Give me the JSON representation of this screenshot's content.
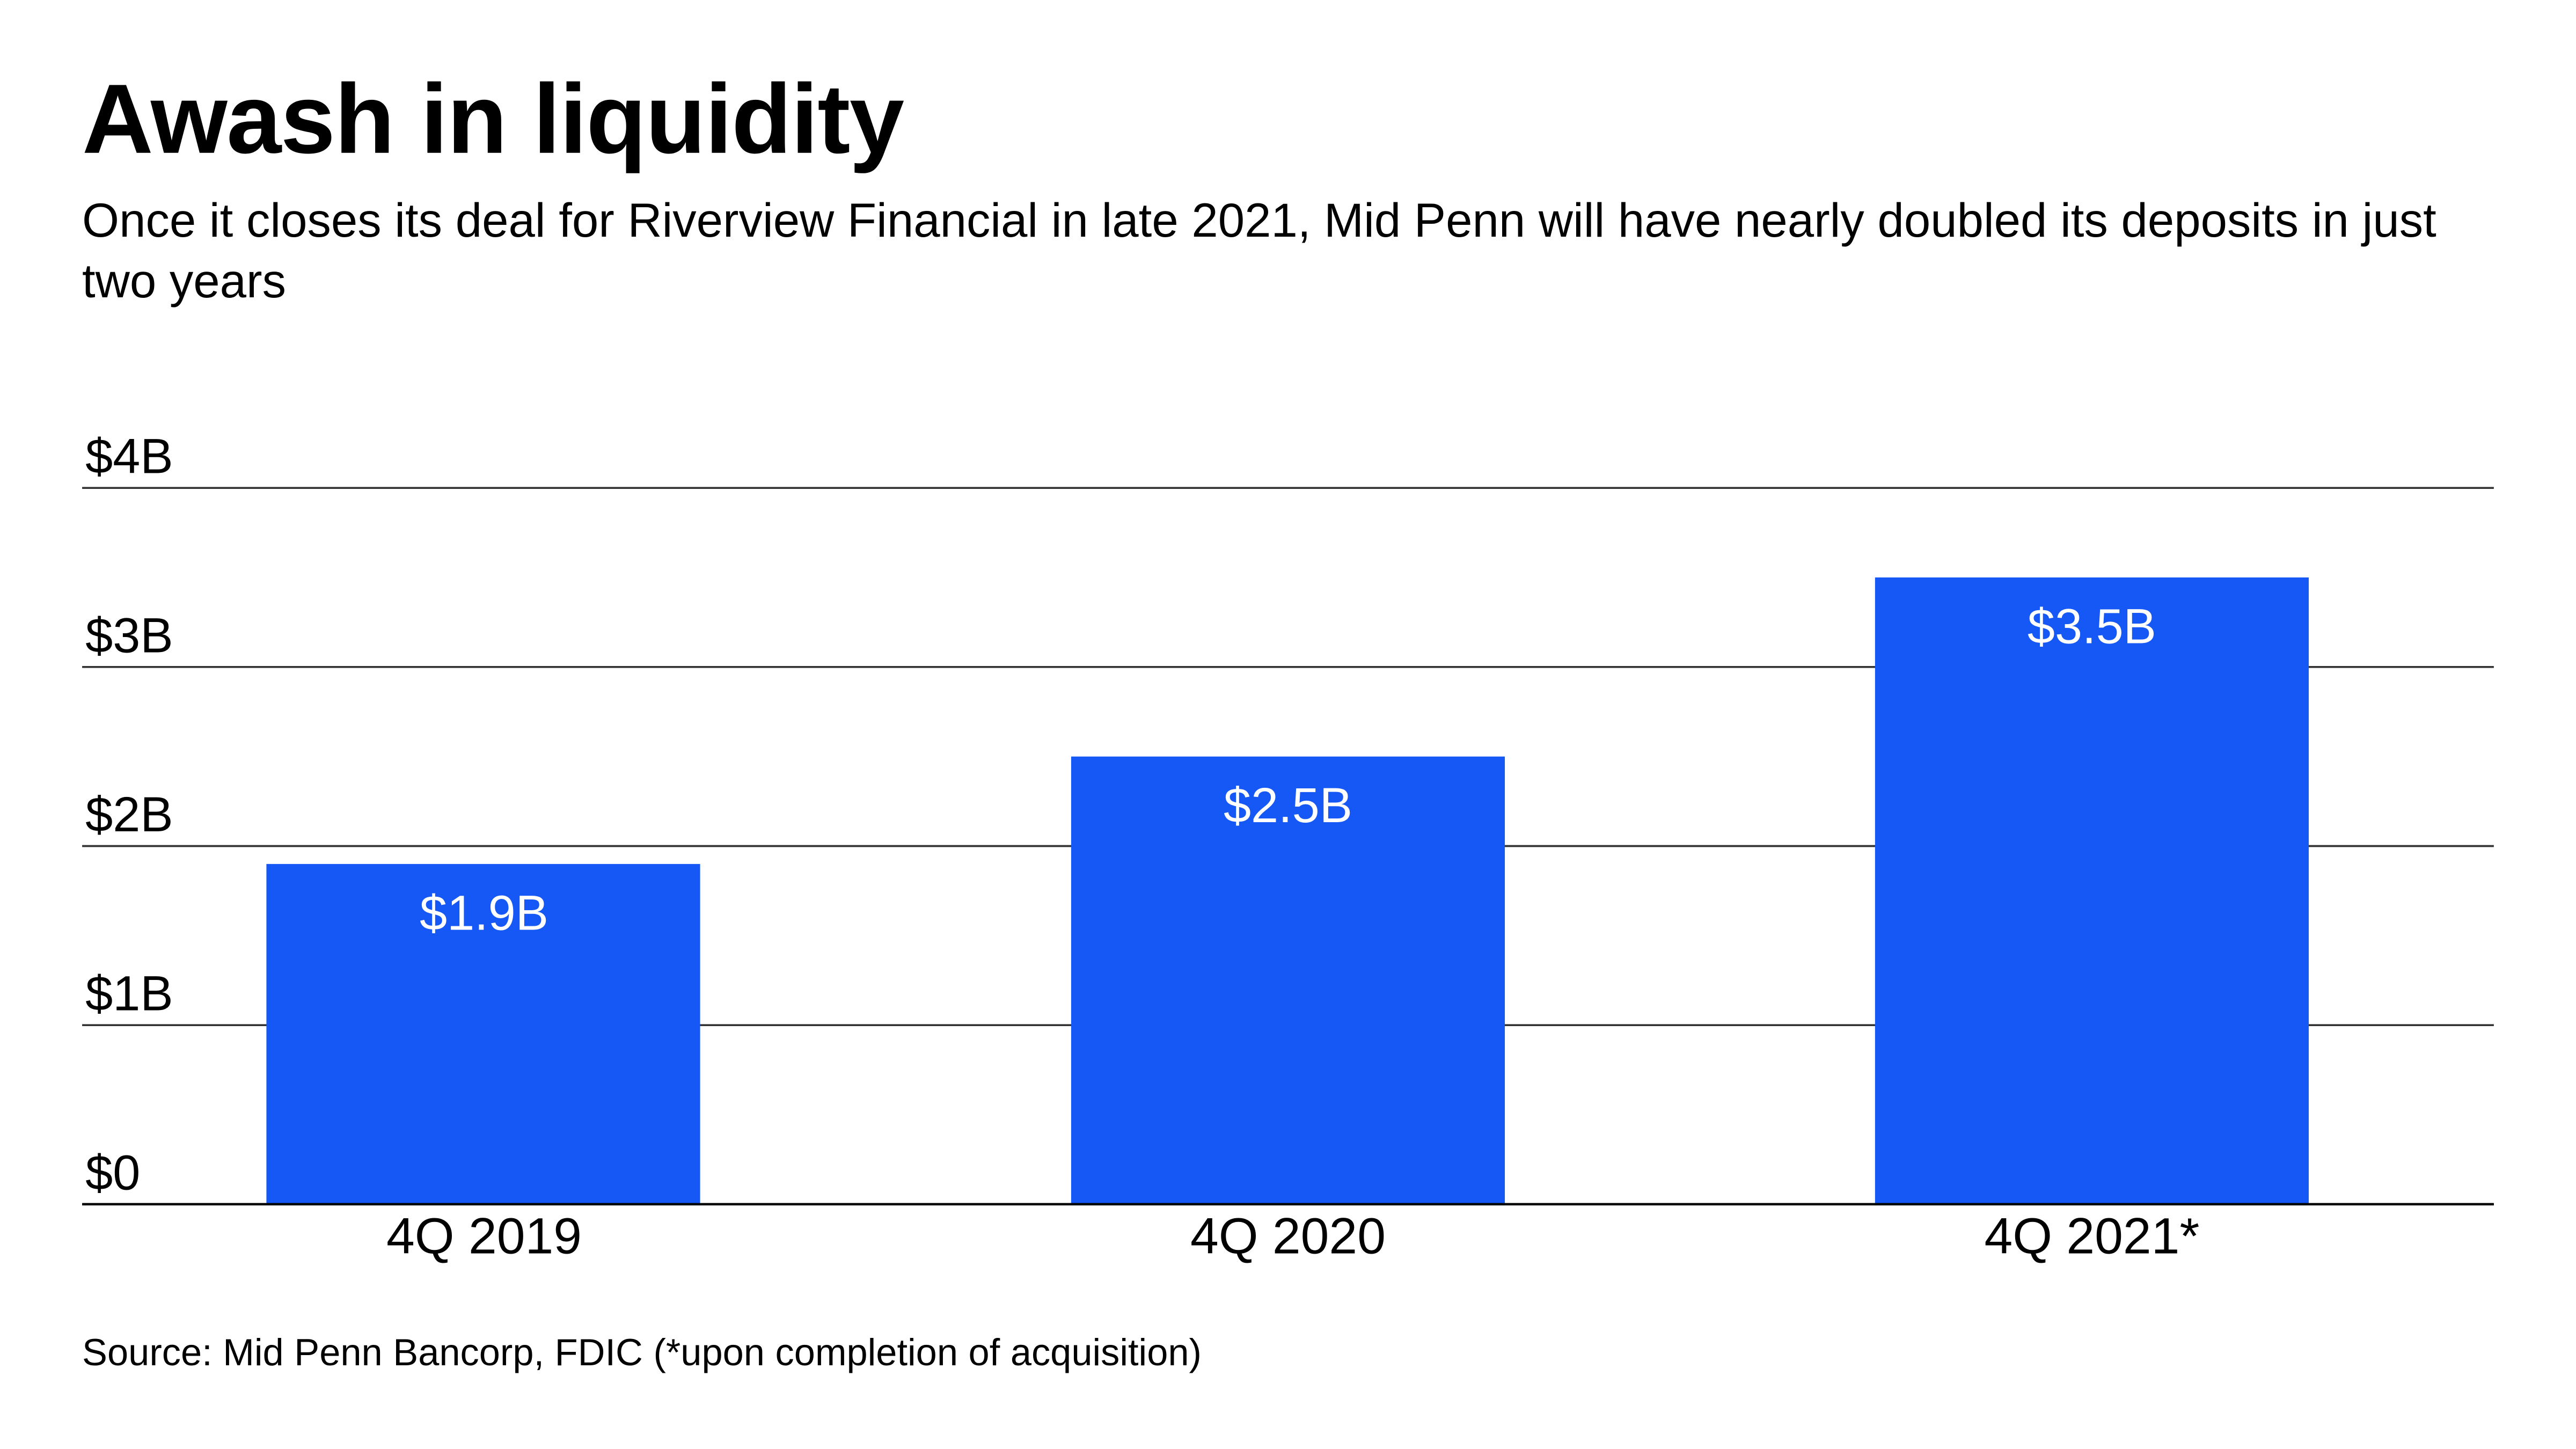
{
  "title": "Awash in liquidity",
  "subtitle": "Once it closes its deal for Riverview Financial in late 2021, Mid Penn will have nearly doubled its deposits in just two years",
  "source": "Source: Mid Penn Bancorp, FDIC (*upon completion of acquisition)",
  "colors": {
    "bar": "#1658f5",
    "grid": "#333333"
  },
  "chart_data": {
    "type": "bar",
    "title": "Awash in liquidity",
    "xlabel": "",
    "ylabel": "",
    "categories": [
      "4Q 2019",
      "4Q 2020",
      "4Q 2021*"
    ],
    "values": [
      1.9,
      2.5,
      3.5
    ],
    "value_labels": [
      "$1.9B",
      "$2.5B",
      "$3.5B"
    ],
    "ylim": [
      0,
      4
    ],
    "yticks": [
      0,
      1,
      2,
      3,
      4
    ],
    "ytick_labels": [
      "$0",
      "$1B",
      "$2B",
      "$3B",
      "$4B"
    ],
    "grid": true
  }
}
